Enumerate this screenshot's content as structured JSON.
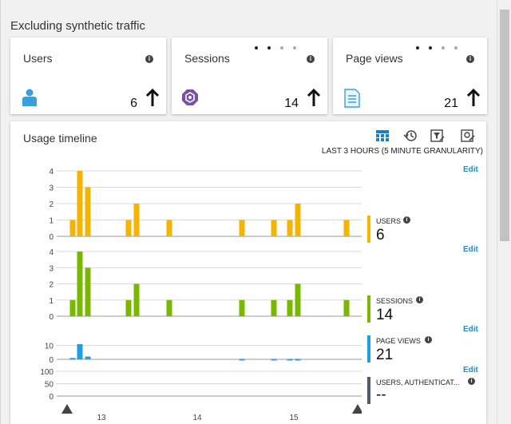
{
  "section_title": "Excluding synthetic traffic",
  "tiles": [
    {
      "label": "Users",
      "value": "6",
      "icon": "user-icon"
    },
    {
      "label": "Sessions",
      "value": "14",
      "icon": "sessions-icon"
    },
    {
      "label": "Page views",
      "value": "21",
      "icon": "page-icon"
    }
  ],
  "timeline": {
    "title": "Usage timeline",
    "granularity": "LAST 3 HOURS (5 MINUTE GRANULARITY)",
    "edit_label": "Edit",
    "x_tick_labels": [
      "13",
      "14",
      "15"
    ],
    "legends": [
      {
        "name": "USERS",
        "value": "6",
        "color": "#f5b400"
      },
      {
        "name": "SESSIONS",
        "value": "14",
        "color": "#7ab800"
      },
      {
        "name": "PAGE VIEWS",
        "value": "21",
        "color": "#1ba1e2"
      },
      {
        "name": "USERS, AUTHENTICAT...",
        "value": "--",
        "color": "#555a6b"
      }
    ]
  },
  "chart_data": {
    "type": "bar",
    "xlabel": "",
    "x_ticks": [
      "13",
      "14",
      "15"
    ],
    "series": [
      {
        "name": "USERS",
        "ylim": [
          0,
          4
        ],
        "y_ticks": [
          "4",
          "3",
          "2",
          "1",
          "0"
        ],
        "values": [
          1,
          4,
          3,
          1,
          2,
          1,
          1,
          1,
          1,
          2,
          1
        ]
      },
      {
        "name": "SESSIONS",
        "ylim": [
          0,
          4
        ],
        "y_ticks": [
          "4",
          "3",
          "2",
          "1",
          "0"
        ],
        "values": [
          1,
          4,
          3,
          1,
          2,
          1,
          1,
          1,
          1,
          2,
          1
        ]
      },
      {
        "name": "PAGE VIEWS",
        "ylim": [
          0,
          15
        ],
        "y_ticks": [
          "10",
          "0"
        ],
        "values": [
          1,
          11,
          2,
          0.3,
          0.3,
          0.3,
          0.3
        ]
      },
      {
        "name": "USERS, AUTHENTICATED",
        "ylim": [
          0,
          100
        ],
        "y_ticks": [
          "100",
          "50",
          "0"
        ],
        "values": []
      }
    ]
  }
}
